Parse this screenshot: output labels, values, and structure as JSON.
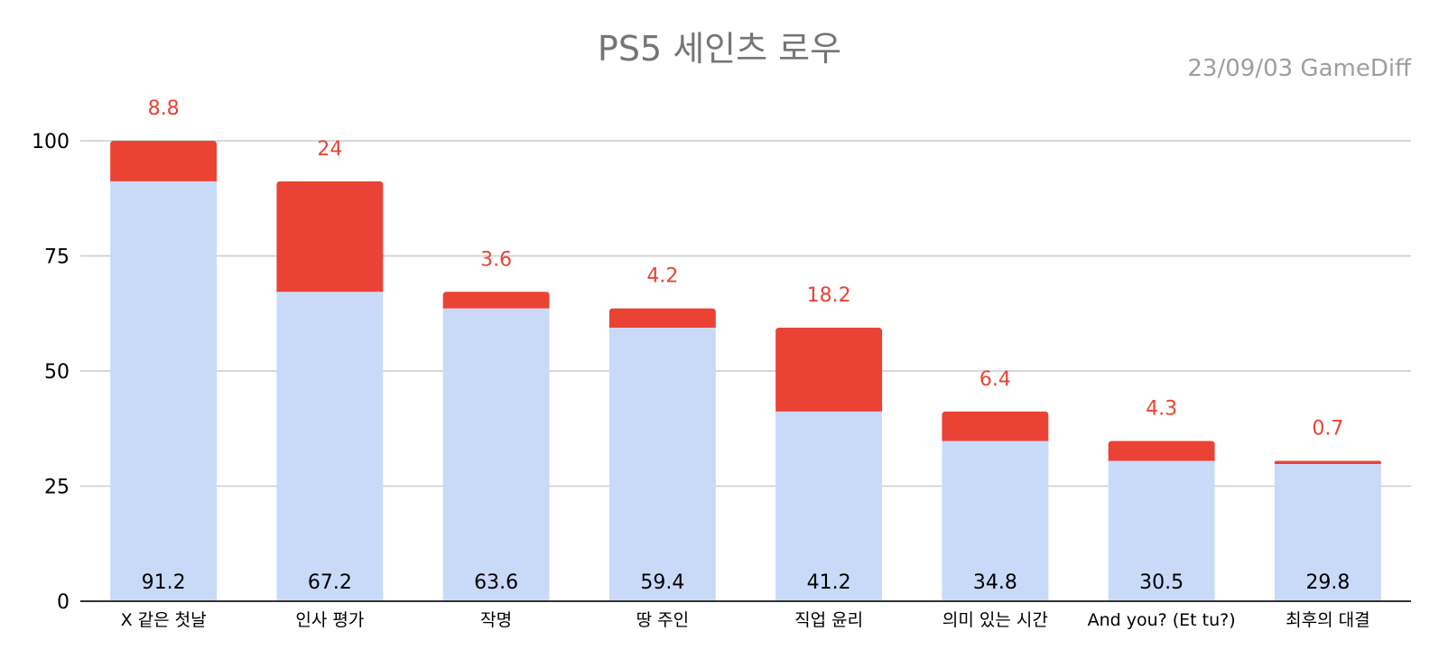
{
  "chart_data": {
    "type": "bar",
    "stacked": true,
    "title": "PS5 세인츠 로우",
    "subtitle": "23/09/03  GameDiff",
    "categories": [
      "X 같은 첫날",
      "인사 평가",
      "작명",
      "땅 주인",
      "직업 윤리",
      "의미 있는 시간",
      "And you? (Et tu?)",
      "최후의 대결"
    ],
    "series": [
      {
        "values": [
          91.2,
          67.2,
          63.6,
          59.4,
          41.2,
          34.8,
          30.5,
          29.8
        ],
        "color": "#c9daf8"
      },
      {
        "values": [
          8.8,
          24,
          3.6,
          4.2,
          18.2,
          6.4,
          4.3,
          0.7
        ],
        "color": "#ea4335"
      }
    ],
    "ylim": [
      0,
      100
    ],
    "yticks": [
      0,
      25,
      50,
      75,
      100
    ],
    "grid": true,
    "top_label_color": "#ea4335",
    "base_label_color": "#000000"
  }
}
